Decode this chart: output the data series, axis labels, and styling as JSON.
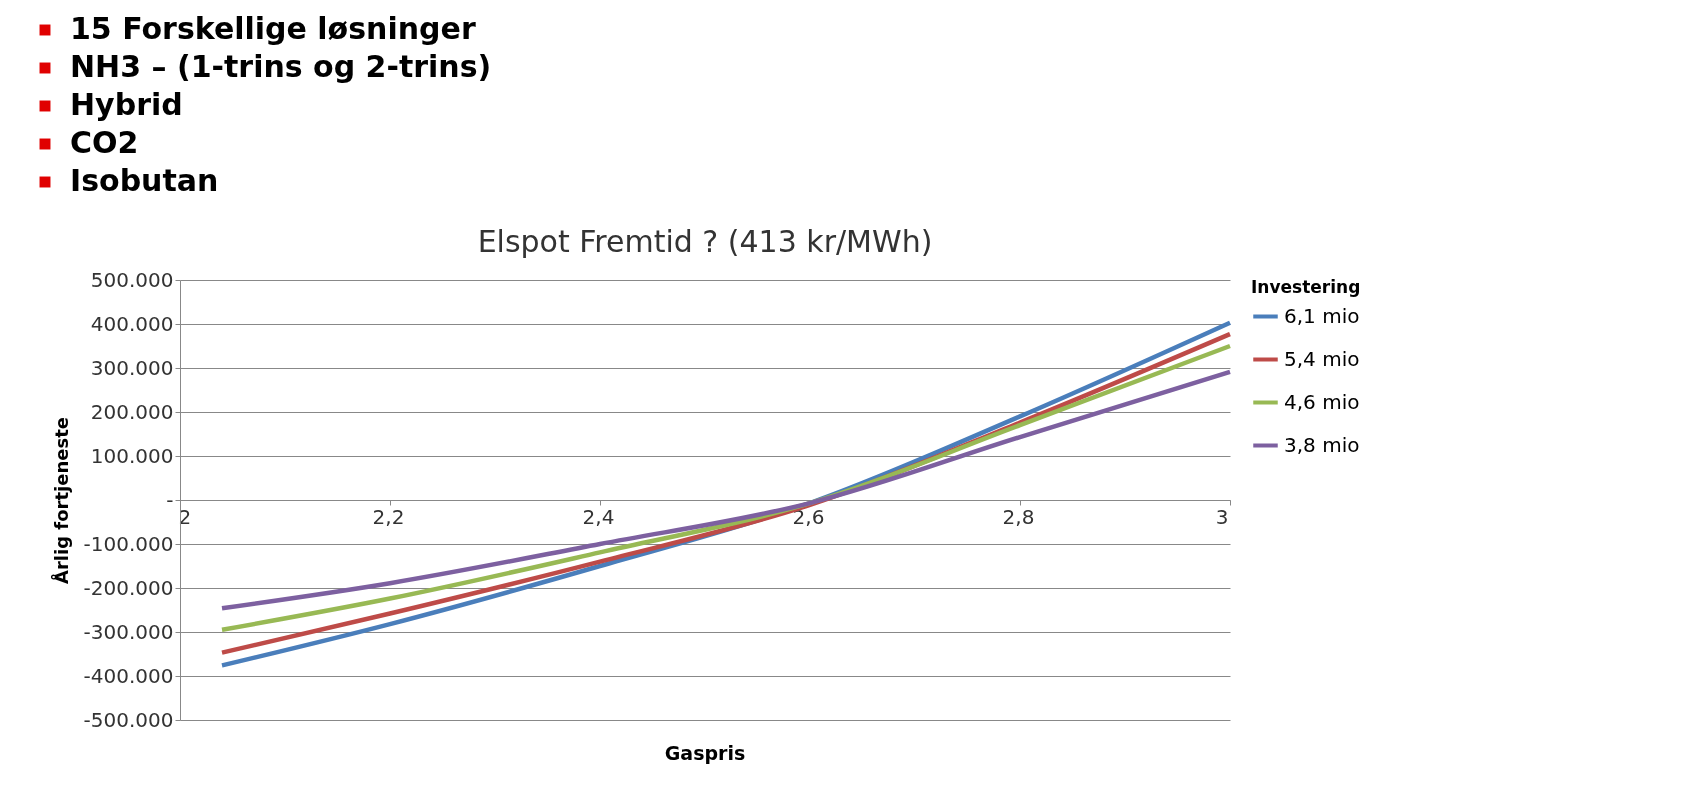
{
  "chart_data": {
    "type": "line",
    "title": "Elspot Fremtid ? (413 kr/MWh)",
    "xlabel": "Gaspris",
    "ylabel": "Årlig fortjeneste",
    "legend_title": "Investering",
    "annotations": [
      "15 Forskellige løsninger",
      "NH3 – (1-trins og 2-trins)",
      "Hybrid",
      "CO2",
      "Isobutan"
    ],
    "x": [
      2.04,
      2.2,
      2.4,
      2.6,
      2.8,
      3
    ],
    "series": [
      {
        "name": "6,1 mio",
        "color": "#4a7ebb",
        "values": [
          -376000,
          -282000,
          -150000,
          -7000,
          190000,
          403000
        ]
      },
      {
        "name": "5,4 mio",
        "color": "#be4b48",
        "values": [
          -347000,
          -258000,
          -140000,
          -11000,
          176000,
          377000
        ]
      },
      {
        "name": "4,6 mio",
        "color": "#98b954",
        "values": [
          -295000,
          -224000,
          -119000,
          -7000,
          170000,
          350000
        ]
      },
      {
        "name": "3,8 mio",
        "color": "#7d60a0",
        "values": [
          -246000,
          -189000,
          -100000,
          -7000,
          143000,
          291000
        ]
      }
    ],
    "xlim": [
      2,
      3
    ],
    "xticks": [
      2,
      {
        "value": 2.2,
        "label": "2,2"
      },
      {
        "value": 2.4,
        "label": "2,4"
      },
      {
        "value": 2.6,
        "label": "2,6"
      },
      {
        "value": 2.8,
        "label": "2,8"
      },
      3
    ],
    "ylim": [
      -500000,
      500000
    ],
    "yticks": [
      {
        "value": -500000,
        "label": "-500.000"
      },
      {
        "value": -400000,
        "label": "-400.000"
      },
      {
        "value": -300000,
        "label": "-300.000"
      },
      {
        "value": -200000,
        "label": "-200.000"
      },
      {
        "value": -100000,
        "label": "-100.000"
      },
      {
        "value": 0,
        "label": "-"
      },
      {
        "value": 100000,
        "label": "100.000"
      },
      {
        "value": 200000,
        "label": "200.000"
      },
      {
        "value": 300000,
        "label": "300.000"
      },
      {
        "value": 400000,
        "label": "400.000"
      },
      {
        "value": 500000,
        "label": "500.000"
      }
    ],
    "grid": "y",
    "legend": "right",
    "marker": "none",
    "line_style": "solid"
  }
}
